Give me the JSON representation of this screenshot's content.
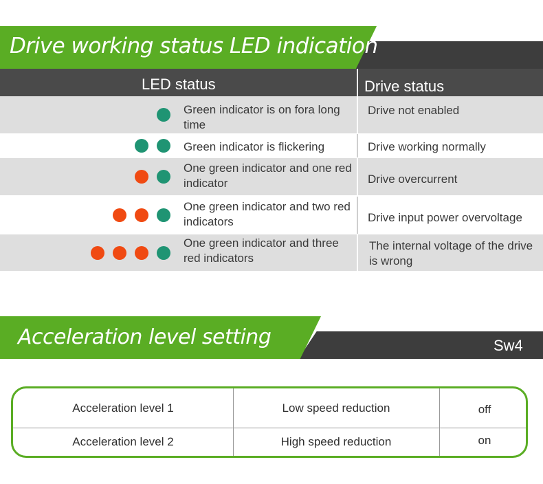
{
  "led_section": {
    "title": "Drive working status LED indication",
    "headers": {
      "led": "LED status",
      "drive": "Drive status"
    },
    "rows": [
      {
        "leds": [
          "green"
        ],
        "led_text": "Green indicator is on fora long time",
        "status": "Drive not enabled"
      },
      {
        "leds": [
          "green",
          "green"
        ],
        "led_text": "Green indicator is flickering",
        "status": "Drive working normally"
      },
      {
        "leds": [
          "red",
          "green"
        ],
        "led_text": "One green indicator and one red indicator",
        "status": "Drive overcurrent"
      },
      {
        "leds": [
          "red",
          "red",
          "green"
        ],
        "led_text": "One green indicator and two red indicators",
        "status": "Drive input power overvoltage"
      },
      {
        "leds": [
          "red",
          "red",
          "red",
          "green"
        ],
        "led_text": "One green indicator and three red indicators",
        "status": "The internal voltage of the drive is wrong"
      }
    ]
  },
  "accel_section": {
    "title": "Acceleration level setting",
    "switch_label": "Sw4",
    "rows": [
      {
        "level": "Acceleration level 1",
        "mode": "Low speed reduction",
        "switch": "off"
      },
      {
        "level": "Acceleration level 2",
        "mode": "High speed reduction",
        "switch": "on"
      }
    ]
  },
  "colors": {
    "green": "#5aad24",
    "dark": "#3d3d3d",
    "led_green": "#1f9473",
    "led_red": "#f04a12",
    "row_gray": "#dedede"
  }
}
